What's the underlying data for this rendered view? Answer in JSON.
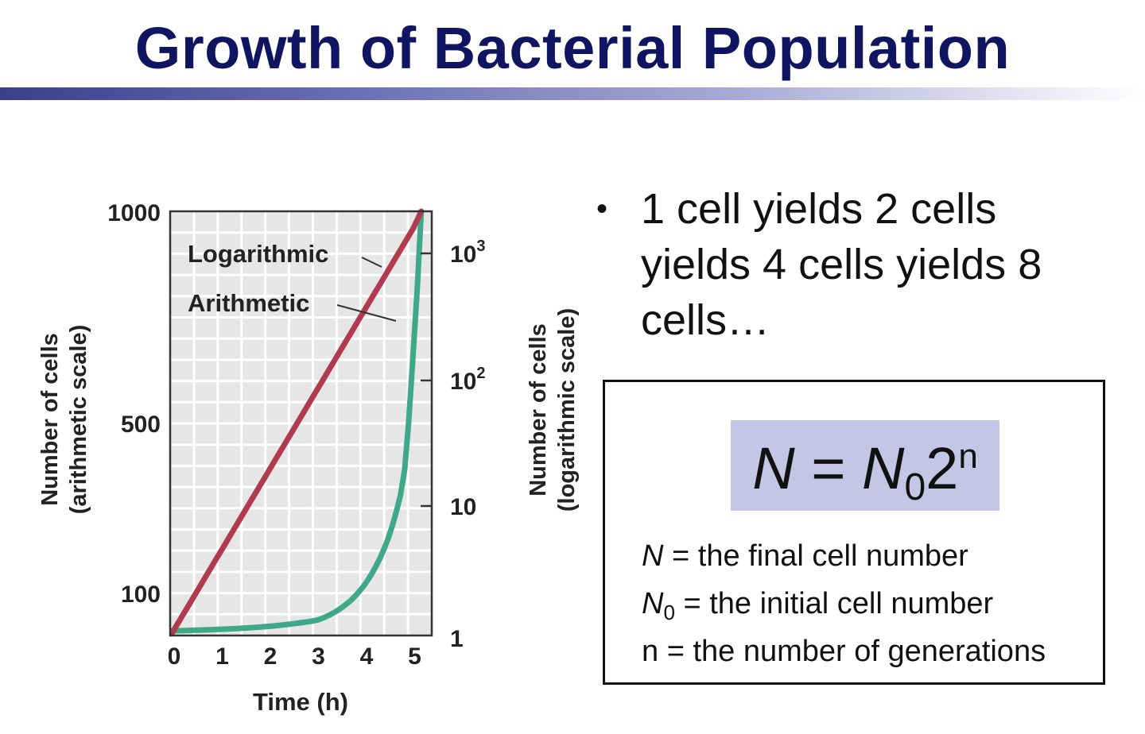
{
  "slide": {
    "title": "Growth of Bacterial Population",
    "bullet": "1 cell yields 2 cells yields 4 cells yields 8 cells…"
  },
  "formula": {
    "lhs": "N",
    "equals": "=",
    "n0_base": "N",
    "n0_sub": "0",
    "base": "2",
    "exponent": "n",
    "definitions": [
      {
        "symbol": "N",
        "sub": "",
        "text": " = the final cell number"
      },
      {
        "symbol": "N",
        "sub": "0",
        "text": " = the initial cell number"
      },
      {
        "symbol": "n",
        "sub": "",
        "text": " = the number of generations"
      }
    ]
  },
  "chart_data": {
    "type": "line",
    "xlabel": "Time (h)",
    "ylabel_left": "Number of cells\n(arithmetic scale)",
    "ylabel_right": "Number of cells\n(logarithmic scale)",
    "xlim": [
      0,
      5.4
    ],
    "x_ticks": [
      "0",
      "1",
      "2",
      "3",
      "4",
      "5"
    ],
    "left_ticks": [
      {
        "label": "1000",
        "value": 1000
      },
      {
        "label": "500",
        "value": 500
      },
      {
        "label": "100",
        "value": 100
      }
    ],
    "right_ticks": [
      {
        "base": "10",
        "exp": "3",
        "value": 1000
      },
      {
        "base": "10",
        "exp": "2",
        "value": 100
      },
      {
        "base": "10",
        "exp": "",
        "value": 10
      },
      {
        "base": "1",
        "exp": "",
        "value": 1
      }
    ],
    "grid": true,
    "series": [
      {
        "name": "Logarithmic",
        "scale": "log",
        "color": "#b03a4e",
        "x": [
          0,
          1,
          2,
          3,
          4,
          5,
          5.17
        ],
        "y": [
          1,
          4,
          16,
          64,
          256,
          1024,
          1380
        ]
      },
      {
        "name": "Arithmetic",
        "scale": "arithmetic",
        "color": "#3fa889",
        "x": [
          0,
          1,
          2,
          3,
          3.5,
          4,
          4.5,
          4.8,
          5,
          5.17
        ],
        "y": [
          1,
          2,
          4,
          8,
          16,
          32,
          64,
          100,
          185,
          280
        ]
      }
    ]
  }
}
